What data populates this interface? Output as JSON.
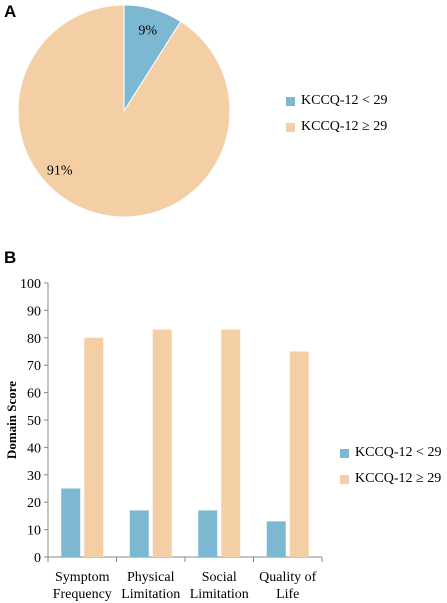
{
  "colors": {
    "low": "#7db8d3",
    "high": "#f4cea4",
    "axis": "#888888"
  },
  "chart_data": [
    {
      "type": "pie",
      "panel_label": "A",
      "slices": [
        {
          "label": "KCCQ-12 < 29",
          "value": 9,
          "value_label": "9%"
        },
        {
          "label": "KCCQ-12 ≥ 29",
          "value": 91,
          "value_label": "91%"
        }
      ],
      "legend": [
        "KCCQ-12 < 29",
        "KCCQ-12 ≥ 29"
      ],
      "legend_position": "right"
    },
    {
      "type": "bar",
      "panel_label": "B",
      "categories": [
        [
          "Symptom",
          "Frequency"
        ],
        [
          "Physical",
          "Limitation"
        ],
        [
          "Social",
          "Limitation"
        ],
        [
          "Quality of",
          "Life"
        ]
      ],
      "series": [
        {
          "name": "KCCQ-12 < 29",
          "values": [
            25,
            17,
            17,
            13
          ]
        },
        {
          "name": "KCCQ-12 ≥ 29",
          "values": [
            80,
            83,
            83,
            75
          ]
        }
      ],
      "ylabel": "Domain Score",
      "ylim": [
        0,
        100
      ],
      "yticks": [
        0,
        10,
        20,
        30,
        40,
        50,
        60,
        70,
        80,
        90,
        100
      ],
      "grid": false,
      "legend_position": "right"
    }
  ]
}
